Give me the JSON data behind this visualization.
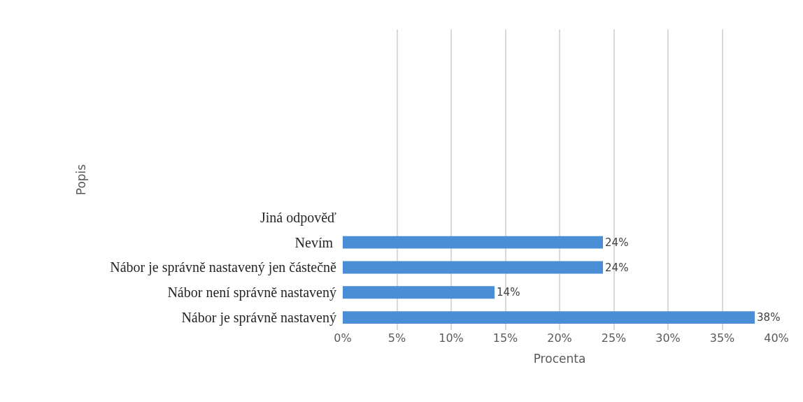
{
  "chart_data": {
    "type": "bar",
    "orientation": "horizontal",
    "xlabel": "Procenta",
    "ylabel": "Popis",
    "categories": [
      null,
      null,
      null,
      null,
      null,
      null,
      null,
      "Jiná odpověď",
      "Nevím ",
      "Nábor je správně nastavený jen částečně",
      "Nábor není správně nastavený",
      "Nábor je správně nastavený"
    ],
    "values": [
      null,
      null,
      null,
      null,
      null,
      null,
      null,
      null,
      24,
      24,
      14,
      38
    ],
    "value_labels": [
      null,
      null,
      null,
      null,
      null,
      null,
      null,
      null,
      "24%",
      "24%",
      "14%",
      "38%"
    ],
    "color": "#4a8fd6",
    "xlim": [
      0,
      40
    ],
    "xticks": [
      {
        "value": 0,
        "label": "0%"
      },
      {
        "value": 5,
        "label": "5%"
      },
      {
        "value": 10,
        "label": "10%"
      },
      {
        "value": 15,
        "label": "15%"
      },
      {
        "value": 20,
        "label": "20%"
      },
      {
        "value": 25,
        "label": "25%"
      },
      {
        "value": 30,
        "label": "30%"
      },
      {
        "value": 35,
        "label": "35%"
      },
      {
        "value": 40,
        "label": "40%"
      }
    ],
    "grid": "x",
    "legend": false
  }
}
